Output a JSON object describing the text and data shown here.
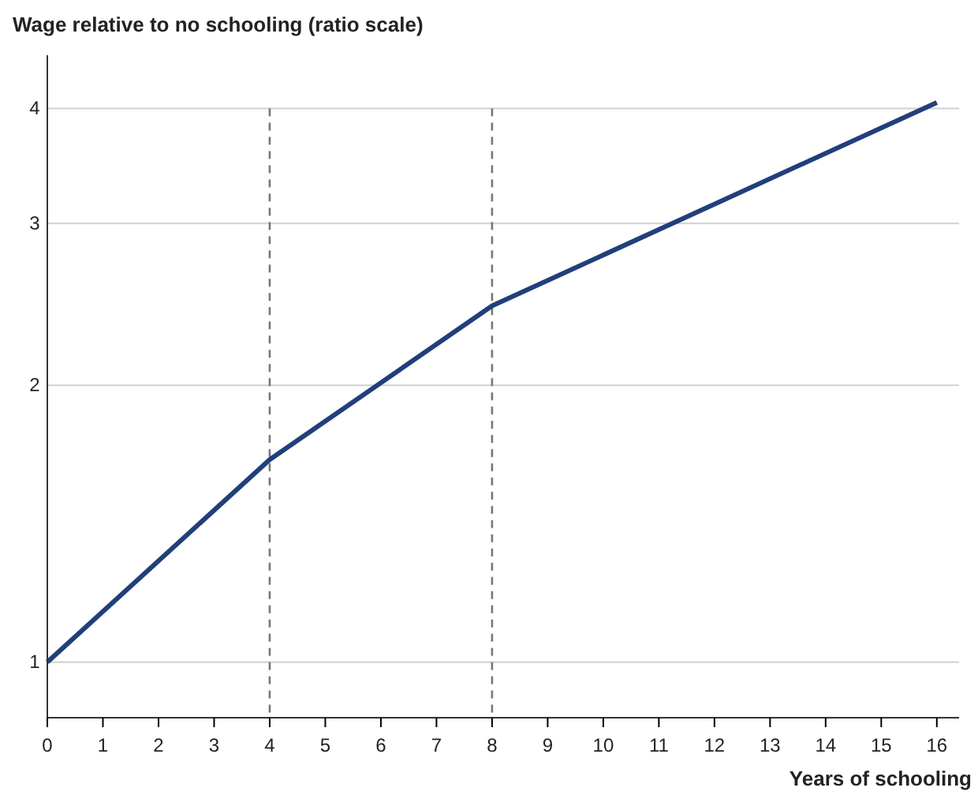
{
  "chart_data": {
    "type": "line",
    "xlabel": "Years of schooling",
    "ylabel": "Wage relative to no schooling (ratio scale)",
    "x": [
      0,
      4,
      8,
      16
    ],
    "series": [
      {
        "color": "#213f7a",
        "values": [
          1,
          1.66,
          2.44,
          4.06
        ]
      }
    ],
    "log": "y",
    "xlim": [
      0,
      16.4
    ],
    "ylim": [
      0.87,
      4.57
    ],
    "xticks": [
      0,
      1,
      2,
      3,
      4,
      5,
      6,
      7,
      8,
      9,
      10,
      11,
      12,
      13,
      14,
      15,
      16
    ],
    "yticks": [
      1,
      2,
      3,
      4
    ],
    "grid": "y",
    "line_style": "solid",
    "marker": "none",
    "ref_lines": [
      {
        "axis": "x",
        "value": 4,
        "color": "#777777",
        "line_style": "dashed"
      },
      {
        "axis": "x",
        "value": 8,
        "color": "#777777",
        "line_style": "dashed"
      }
    ]
  }
}
